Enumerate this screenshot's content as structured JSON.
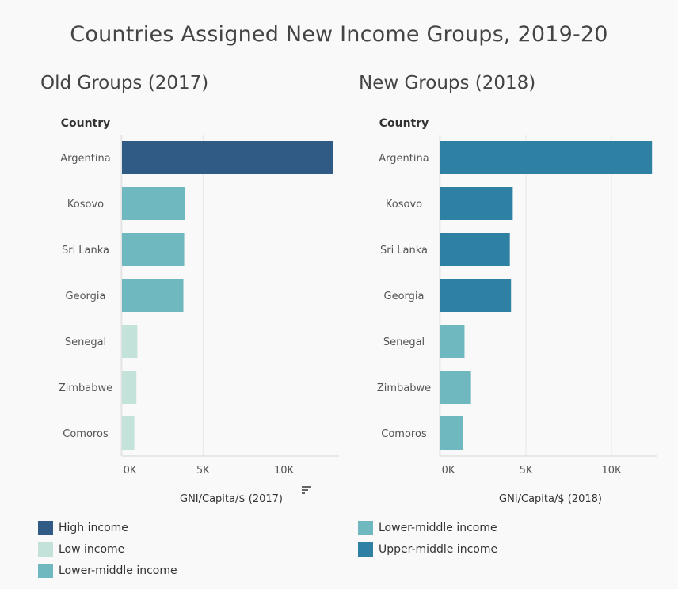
{
  "title": "Countries Assigned New Income Groups, 2019-20",
  "colors": {
    "High income": "#2f5b84",
    "Low income": "#c2e2da",
    "Lower-middle income": "#6fb8c0",
    "Upper-middle income": "#2f81a3",
    "New groups bar": "#3795b5",
    "grid": "#e6e6e6"
  },
  "chart_data": [
    {
      "type": "bar",
      "orientation": "horizontal",
      "title": "Old Groups (2017)",
      "category_header": "Country",
      "categories": [
        "Argentina",
        "Kosovo",
        "Sri Lanka",
        "Georgia",
        "Senegal",
        "Zimbabwe",
        "Comoros"
      ],
      "values": [
        13040,
        3900,
        3840,
        3790,
        950,
        890,
        760
      ],
      "groups": [
        "High income",
        "Lower-middle income",
        "Lower-middle income",
        "Lower-middle income",
        "Low income",
        "Low income",
        "Low income"
      ],
      "xlabel": "GNI/Capita/$ (2017)",
      "xlim": [
        0,
        13200
      ],
      "xticks": [
        "0K",
        "5K",
        "10K"
      ],
      "grid": true,
      "legend": [
        {
          "label": "High income",
          "color": "#2f5b84"
        },
        {
          "label": "Low income",
          "color": "#c2e2da"
        },
        {
          "label": "Lower-middle income",
          "color": "#6fb8c0"
        }
      ]
    },
    {
      "type": "bar",
      "orientation": "horizontal",
      "title": "New Groups (2018)",
      "category_header": "Country",
      "categories": [
        "Argentina",
        "Kosovo",
        "Sri Lanka",
        "Georgia",
        "Senegal",
        "Zimbabwe",
        "Comoros"
      ],
      "values": [
        12370,
        4230,
        4060,
        4130,
        1410,
        1790,
        1320
      ],
      "groups": [
        "Upper-middle income",
        "Upper-middle income",
        "Upper-middle income",
        "Upper-middle income",
        "Lower-middle income",
        "Lower-middle income",
        "Lower-middle income"
      ],
      "xlabel": "GNI/Capita/$ (2018)",
      "xlim": [
        0,
        12500
      ],
      "xticks": [
        "0K",
        "5K",
        "10K"
      ],
      "grid": true,
      "legend": [
        {
          "label": "Lower-middle income",
          "color": "#6fb8c0"
        },
        {
          "label": "Upper-middle income",
          "color": "#2f81a3"
        }
      ]
    }
  ]
}
